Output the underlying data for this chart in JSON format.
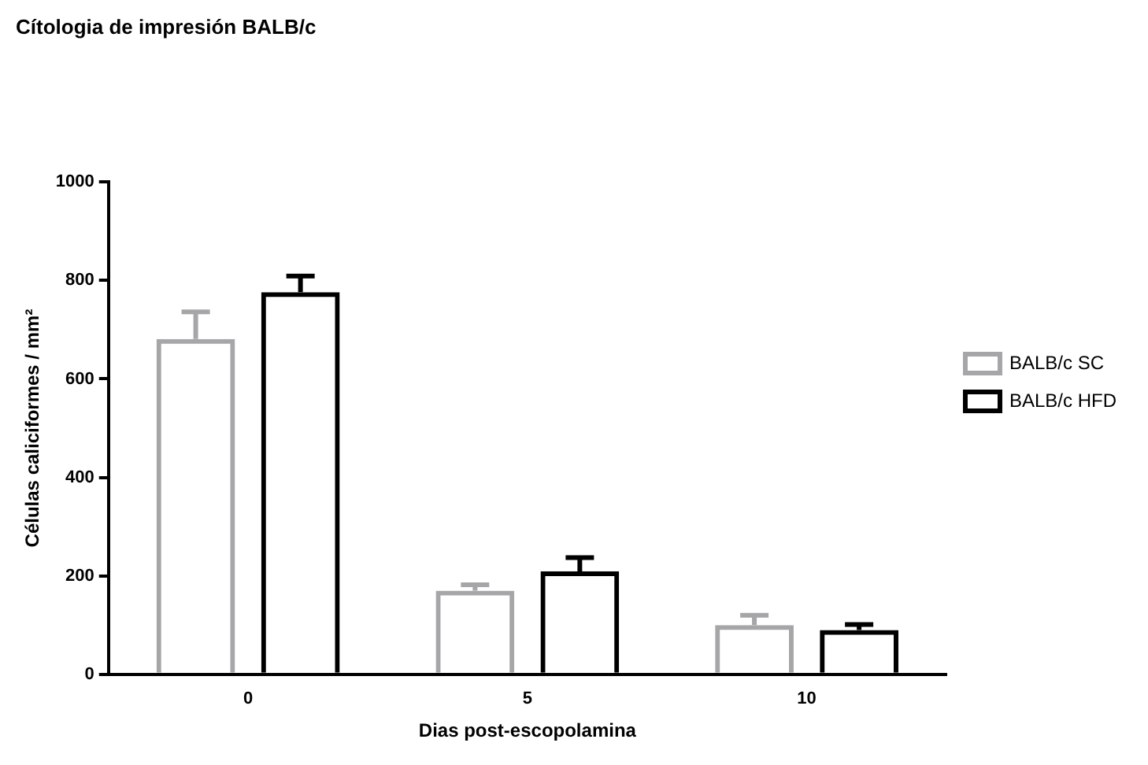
{
  "chart_data": {
    "type": "bar",
    "title": "Cítologia de impresión BALB/c",
    "xlabel": "Dias post-escopolamina",
    "ylabel": "Células caliciformes / mm²",
    "categories": [
      "0",
      "5",
      "10"
    ],
    "series": [
      {
        "name": "BALB/c SC",
        "color": "#a6a6a8",
        "values": [
          681,
          170,
          100
        ],
        "errors": [
          [
            681,
            736
          ],
          [
            170,
            182
          ],
          [
            100,
            120
          ]
        ]
      },
      {
        "name": "BALB/c HFD",
        "color": "#000000",
        "values": [
          776,
          209,
          90
        ],
        "errors": [
          [
            776,
            809
          ],
          [
            209,
            237
          ],
          [
            90,
            101
          ]
        ]
      }
    ],
    "ylim": [
      0,
      1000
    ],
    "yticks": [
      0,
      200,
      400,
      600,
      800,
      1000
    ],
    "grid": false,
    "legend": "right"
  }
}
